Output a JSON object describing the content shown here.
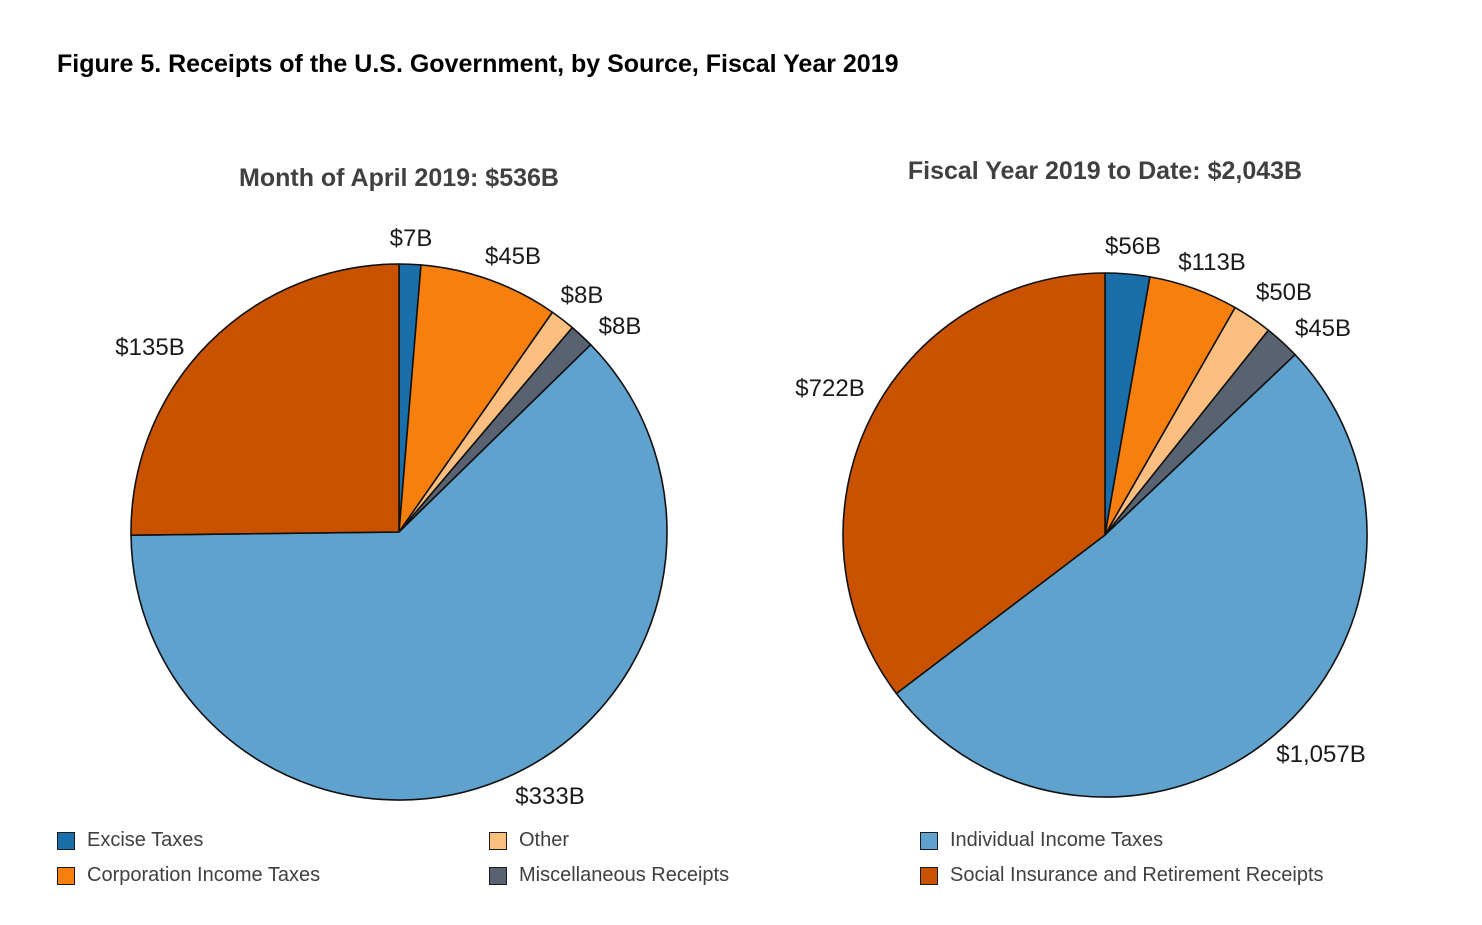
{
  "figure_title": "Figure 5. Receipts of the U.S. Government, by Source, Fiscal Year 2019",
  "chart_data": [
    {
      "type": "pie",
      "title": "Month of April 2019: $536B",
      "slices": [
        {
          "category": "Excise Taxes",
          "value": 7,
          "label": "$7B"
        },
        {
          "category": "Corporation Income Taxes",
          "value": 45,
          "label": "$45B"
        },
        {
          "category": "Other",
          "value": 8,
          "label": "$8B"
        },
        {
          "category": "Miscellaneous Receipts",
          "value": 8,
          "label": "$8B"
        },
        {
          "category": "Individual Income Taxes",
          "value": 333,
          "label": "$333B"
        },
        {
          "category": "Social Insurance and Retirement Receipts",
          "value": 135,
          "label": "$135B"
        }
      ]
    },
    {
      "type": "pie",
      "title": "Fiscal Year 2019 to Date: $2,043B",
      "slices": [
        {
          "category": "Excise Taxes",
          "value": 56,
          "label": "$56B"
        },
        {
          "category": "Corporation Income Taxes",
          "value": 113,
          "label": "$113B"
        },
        {
          "category": "Other",
          "value": 50,
          "label": "$50B"
        },
        {
          "category": "Miscellaneous Receipts",
          "value": 45,
          "label": "$45B"
        },
        {
          "category": "Individual Income Taxes",
          "value": 1057,
          "label": "$1,057B"
        },
        {
          "category": "Social Insurance and Retirement Receipts",
          "value": 722,
          "label": "$722B"
        }
      ]
    }
  ],
  "legend": [
    {
      "label": "Excise Taxes",
      "color": "#1a6faa"
    },
    {
      "label": "Other",
      "color": "#fdbf80"
    },
    {
      "label": "Individual Income Taxes",
      "color": "#5fa2ce"
    },
    {
      "label": "Corporation Income Taxes",
      "color": "#f77f0e"
    },
    {
      "label": "Miscellaneous Receipts",
      "color": "#596270"
    },
    {
      "label": "Social Insurance and Retirement Receipts",
      "color": "#c85200"
    }
  ],
  "colors": {
    "Excise Taxes": "#1a6faa",
    "Corporation Income Taxes": "#f77f0e",
    "Other": "#fdbf80",
    "Miscellaneous Receipts": "#596270",
    "Individual Income Taxes": "#5fa2ce",
    "Social Insurance and Retirement Receipts": "#c85200"
  }
}
